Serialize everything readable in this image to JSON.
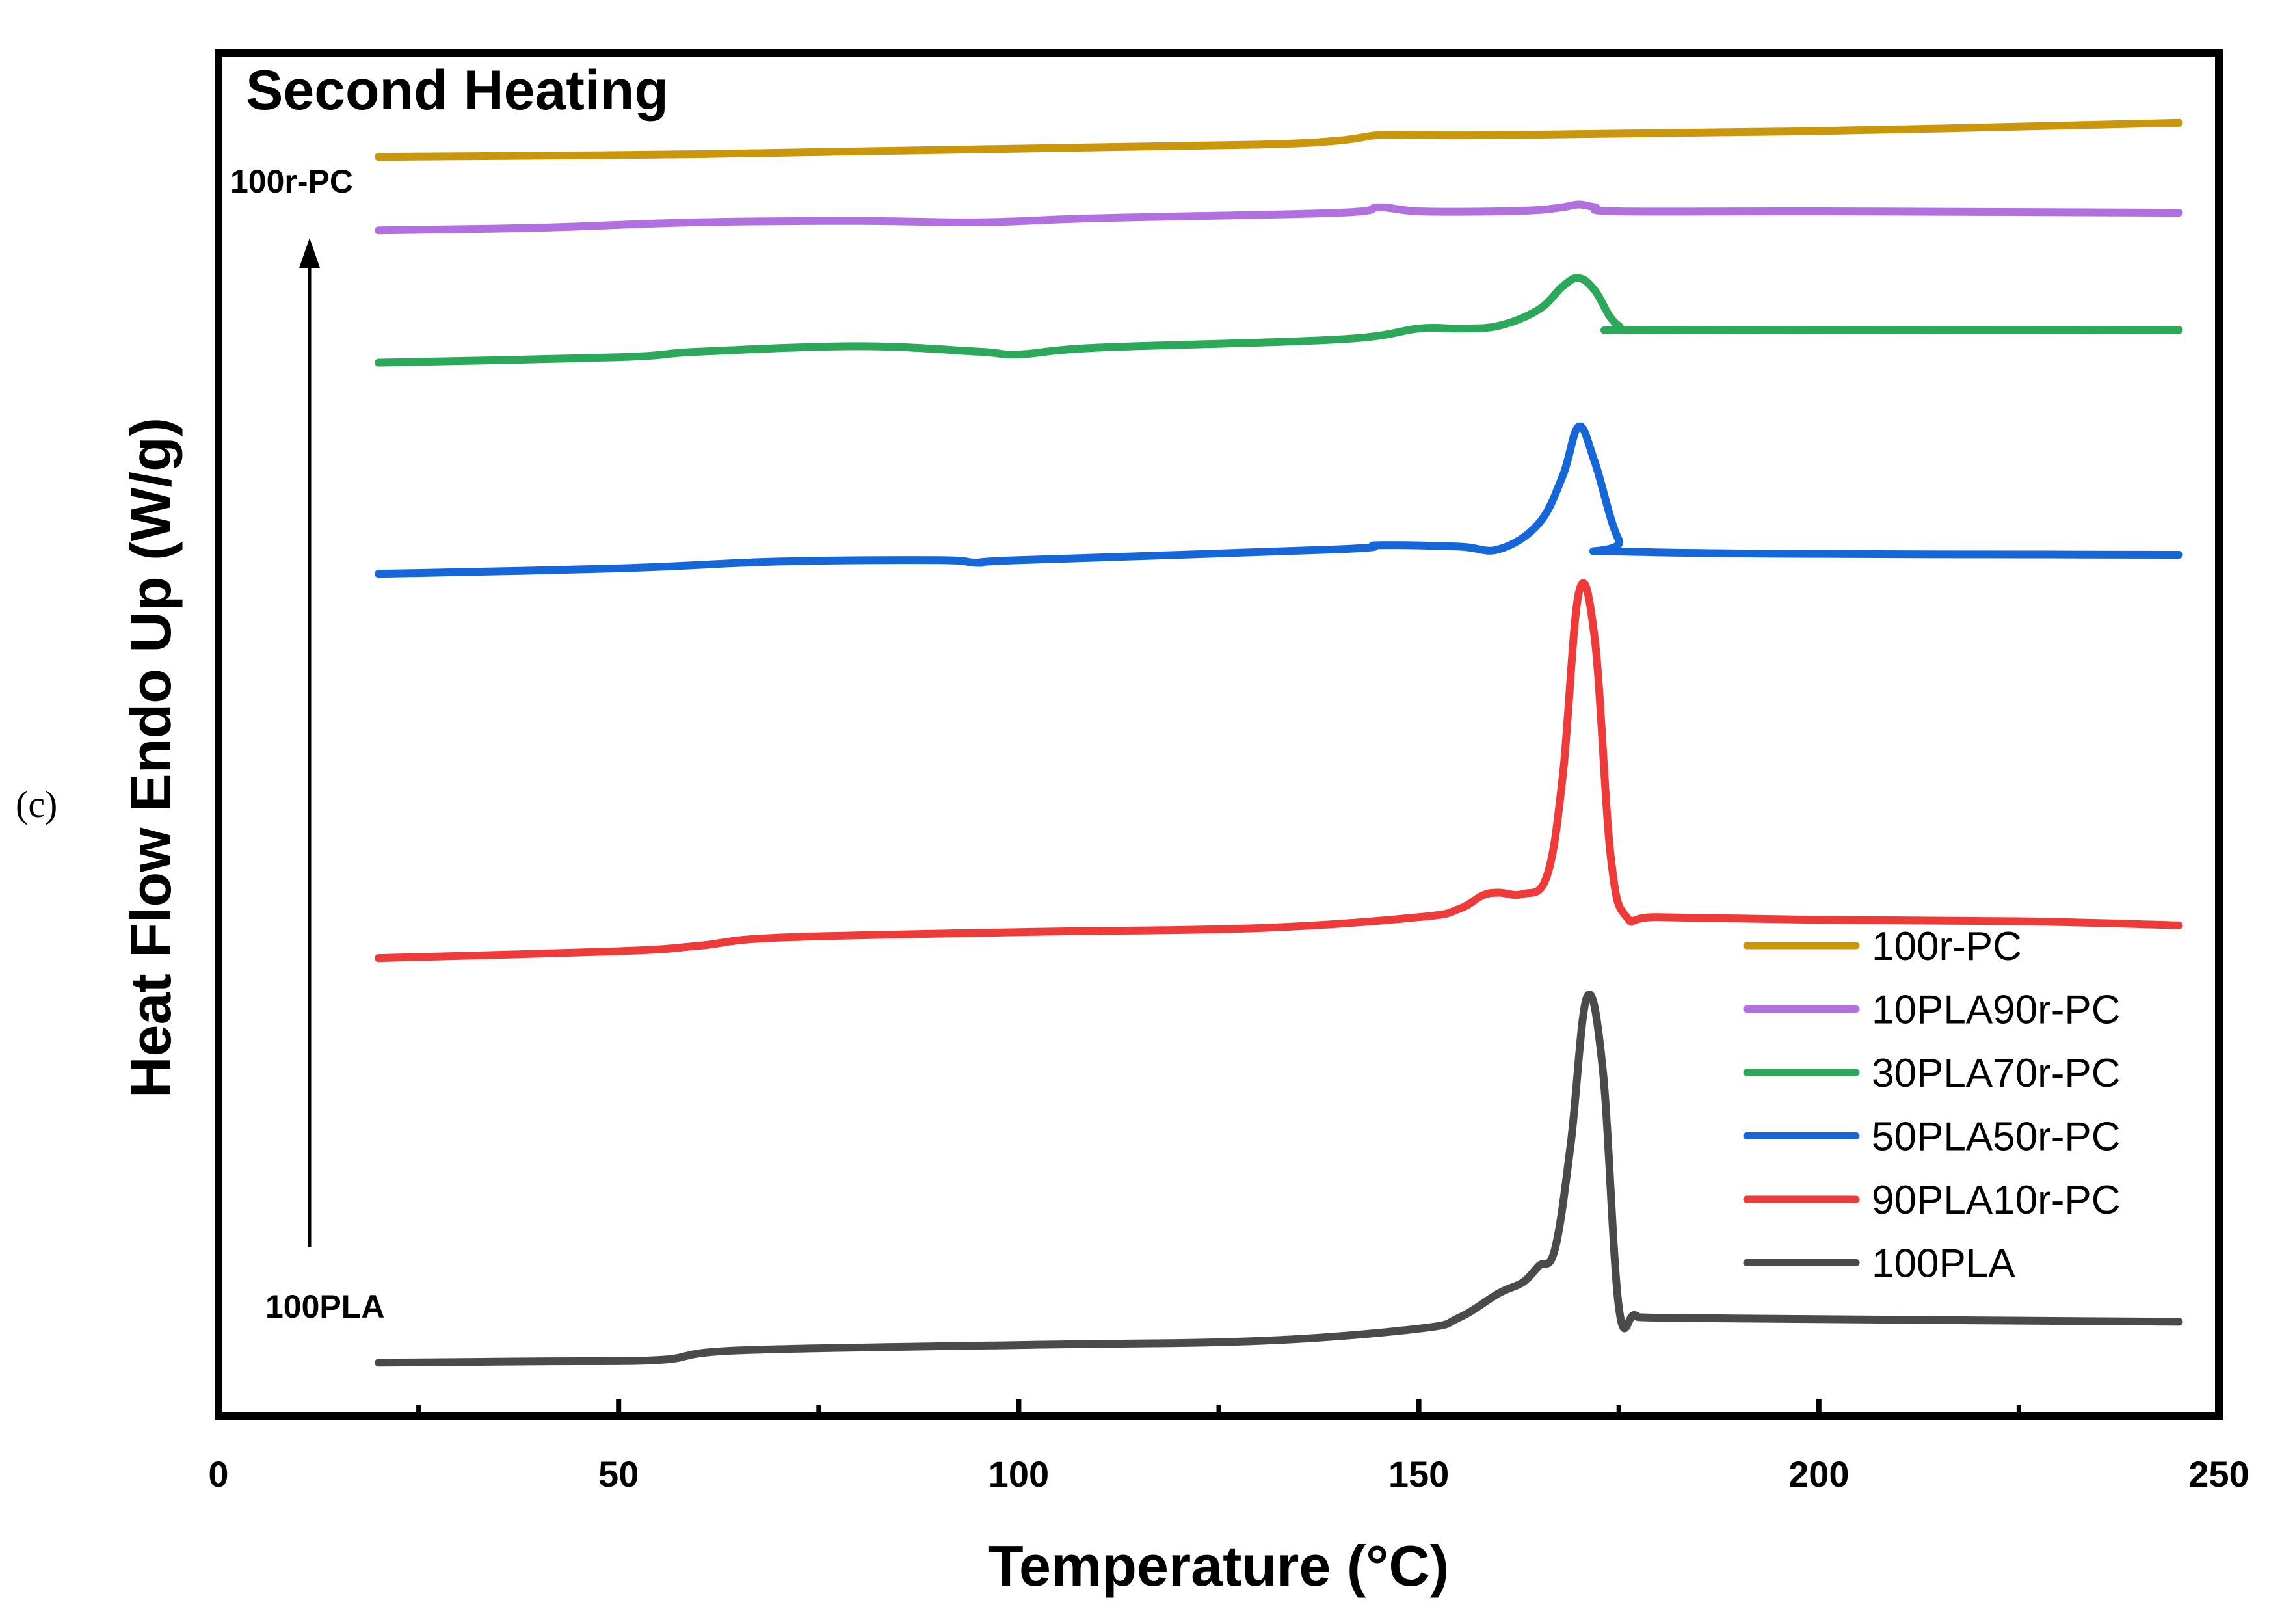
{
  "chart_data": {
    "type": "line",
    "title": "Second Heating",
    "panel_label": "(c)",
    "xlabel": "Temperature (°C)",
    "ylabel": "Heat Flow Endo Up (W/g)",
    "xlim": [
      0,
      250
    ],
    "ylim": [
      0,
      100
    ],
    "xticks": [
      0,
      50,
      100,
      150,
      200,
      250
    ],
    "minor_xticks": [
      25,
      75,
      125,
      175,
      225
    ],
    "yticks_shown": false,
    "legend_position": "lower-right",
    "annotations": {
      "arrow_top_label": "100r-PC",
      "arrow_bottom_label": "100PLA"
    },
    "series": [
      {
        "name": "100r-PC",
        "color": "#c9960c",
        "x": [
          20,
          60,
          100,
          130,
          140,
          145,
          150,
          160,
          200,
          245
        ],
        "y": [
          92.4,
          92.6,
          93.0,
          93.3,
          93.6,
          94.0,
          94.0,
          94.0,
          94.3,
          94.9
        ]
      },
      {
        "name": "10PLA90r-PC",
        "color": "#b070e0",
        "x": [
          20,
          40,
          60,
          80,
          95,
          110,
          140,
          145,
          150,
          160,
          165,
          168,
          170,
          172,
          175,
          200,
          245
        ],
        "y": [
          87.0,
          87.2,
          87.6,
          87.7,
          87.6,
          87.9,
          88.3,
          88.7,
          88.4,
          88.4,
          88.5,
          88.7,
          88.9,
          88.7,
          88.4,
          88.4,
          88.3
        ]
      },
      {
        "name": "30PLA70r-PC",
        "color": "#2ca85a",
        "x": [
          20,
          50,
          60,
          80,
          95,
          100,
          110,
          140,
          150,
          155,
          160,
          165,
          168,
          170,
          172,
          175,
          180,
          245
        ],
        "y": [
          77.3,
          77.7,
          78.1,
          78.5,
          78.1,
          77.9,
          78.4,
          79.0,
          79.8,
          79.8,
          80.0,
          81.2,
          82.9,
          83.5,
          82.6,
          80.0,
          79.7,
          79.7
        ]
      },
      {
        "name": "50PLA50r-PC",
        "color": "#1566d8",
        "x": [
          20,
          50,
          70,
          90,
          95,
          100,
          140,
          145,
          155,
          160,
          165,
          168,
          170,
          172,
          175,
          178,
          245
        ],
        "y": [
          61.8,
          62.2,
          62.7,
          62.8,
          62.6,
          62.8,
          63.6,
          63.9,
          63.8,
          63.6,
          65.5,
          69.0,
          72.6,
          70.0,
          64.3,
          63.4,
          63.2
        ]
      },
      {
        "name": "90PLA10r-PC",
        "color": "#ef3a3a",
        "x": [
          20,
          50,
          60,
          70,
          100,
          130,
          150,
          155,
          158,
          160,
          163,
          166,
          168,
          170,
          172,
          174,
          176,
          180,
          200,
          225,
          245
        ],
        "y": [
          33.6,
          34.1,
          34.5,
          35.1,
          35.5,
          35.8,
          36.6,
          37.2,
          38.2,
          38.4,
          38.3,
          39.6,
          47.0,
          60.4,
          57.0,
          41.0,
          36.6,
          36.6,
          36.4,
          36.3,
          36.0
        ]
      },
      {
        "name": "100PLA",
        "color": "#4a4a4a",
        "x": [
          20,
          40,
          55,
          65,
          100,
          130,
          150,
          155,
          160,
          163,
          165,
          167,
          169,
          171,
          173,
          175,
          177,
          180,
          200,
          245
        ],
        "y": [
          3.9,
          4.0,
          4.1,
          4.8,
          5.2,
          5.5,
          6.4,
          7.2,
          9.0,
          9.8,
          11.0,
          12.2,
          20.0,
          30.7,
          25.4,
          8.0,
          7.4,
          7.2,
          7.1,
          6.9
        ]
      }
    ]
  }
}
